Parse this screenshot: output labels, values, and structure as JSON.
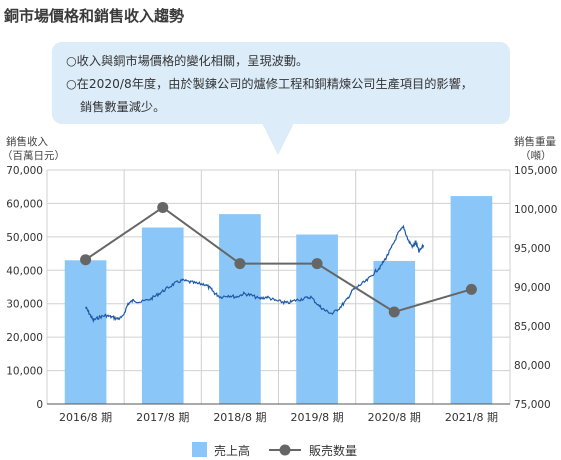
{
  "page_title": "銅市場價格和銷售收入趨勢",
  "notes": [
    "○收入與銅市場價格的變化相關，呈現波動。",
    "○在2020/8年度，由於製鍊公司的爐修工程和銅精煉公司生產項目的影響，",
    "銷售數量減少。"
  ],
  "chart_data": {
    "type": "bar",
    "categories": [
      "2016/8 期",
      "2017/8 期",
      "2018/8 期",
      "2019/8 期",
      "2020/8 期",
      "2021/8 期"
    ],
    "left_axis": {
      "label_line1": "銷售收入",
      "label_line2": "（百萬日元）",
      "ylim": [
        0,
        70000
      ],
      "ticks": [
        "0",
        "10,000",
        "20,000",
        "30,000",
        "40,000",
        "50,000",
        "60,000",
        "70,000"
      ]
    },
    "right_axis": {
      "label_line1": "銷售重量",
      "label_line2": "（噸）",
      "ylim": [
        75000,
        105000
      ],
      "ticks": [
        "75,000",
        "80,000",
        "85,000",
        "90,000",
        "95,000",
        "100,000",
        "105,000"
      ]
    },
    "series": [
      {
        "name": "売上高",
        "type": "bar",
        "axis": "left",
        "color": "#8ac7f8",
        "values": [
          43000,
          52800,
          56800,
          50700,
          42800,
          62200
        ]
      },
      {
        "name": "販売数量",
        "type": "line",
        "axis": "right",
        "color": "#666666",
        "values": [
          93500,
          100200,
          93000,
          93000,
          86800,
          89700
        ]
      }
    ],
    "price_line": {
      "axis": "left",
      "color": "#1f5aa6",
      "anchors": [
        [
          0.0,
          29000
        ],
        [
          0.05,
          27000
        ],
        [
          0.1,
          25000
        ],
        [
          0.18,
          26000
        ],
        [
          0.26,
          26500
        ],
        [
          0.34,
          26000
        ],
        [
          0.42,
          25500
        ],
        [
          0.48,
          26000
        ],
        [
          0.55,
          30000
        ],
        [
          0.62,
          31000
        ],
        [
          0.72,
          30500
        ],
        [
          0.85,
          31500
        ],
        [
          0.95,
          33000
        ],
        [
          1.05,
          34500
        ],
        [
          1.15,
          36000
        ],
        [
          1.25,
          37000
        ],
        [
          1.35,
          36500
        ],
        [
          1.45,
          36000
        ],
        [
          1.55,
          35800
        ],
        [
          1.62,
          34500
        ],
        [
          1.68,
          33000
        ],
        [
          1.75,
          32000
        ],
        [
          1.85,
          32500
        ],
        [
          1.95,
          32000
        ],
        [
          2.05,
          33000
        ],
        [
          2.15,
          32500
        ],
        [
          2.25,
          31500
        ],
        [
          2.35,
          32000
        ],
        [
          2.45,
          31000
        ],
        [
          2.55,
          30500
        ],
        [
          2.62,
          30200
        ],
        [
          2.72,
          31000
        ],
        [
          2.82,
          31500
        ],
        [
          2.92,
          32000
        ],
        [
          3.02,
          29500
        ],
        [
          3.1,
          28000
        ],
        [
          3.2,
          27000
        ],
        [
          3.3,
          29000
        ],
        [
          3.38,
          31000
        ],
        [
          3.46,
          34000
        ],
        [
          3.55,
          35500
        ],
        [
          3.65,
          37000
        ],
        [
          3.75,
          39500
        ],
        [
          3.82,
          41000
        ],
        [
          3.9,
          44000
        ],
        [
          3.97,
          47000
        ],
        [
          4.05,
          51000
        ],
        [
          4.12,
          53000
        ],
        [
          4.18,
          49000
        ],
        [
          4.24,
          47000
        ],
        [
          4.28,
          48500
        ],
        [
          4.32,
          45500
        ],
        [
          4.38,
          47500
        ]
      ]
    }
  },
  "legend": {
    "bar_label": "売上高",
    "line_label": "販売数量"
  }
}
